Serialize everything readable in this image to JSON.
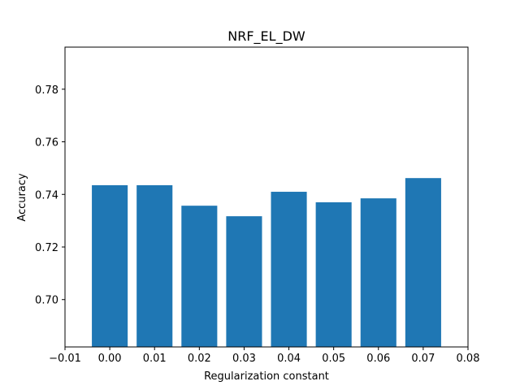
{
  "chart_data": {
    "type": "bar",
    "title": "NRF_EL_DW",
    "xlabel": "Regularization constant",
    "ylabel": "Accuracy",
    "x": [
      0.0,
      0.01,
      0.02,
      0.03,
      0.04,
      0.05,
      0.06,
      0.07
    ],
    "values": [
      0.7435,
      0.7435,
      0.7357,
      0.7317,
      0.741,
      0.737,
      0.7385,
      0.7462
    ],
    "bar_width": 0.008,
    "xlim": [
      -0.01,
      0.08
    ],
    "ylim": [
      0.682,
      0.796
    ],
    "xticks": [
      -0.01,
      0.0,
      0.01,
      0.02,
      0.03,
      0.04,
      0.05,
      0.06,
      0.07,
      0.08
    ],
    "xtick_labels": [
      "−0.01",
      "0.00",
      "0.01",
      "0.02",
      "0.03",
      "0.04",
      "0.05",
      "0.06",
      "0.07",
      "0.08"
    ],
    "yticks": [
      0.7,
      0.72,
      0.74,
      0.76,
      0.78
    ],
    "ytick_labels": [
      "0.70",
      "0.72",
      "0.74",
      "0.76",
      "0.78"
    ],
    "bar_color": "#1f77b4",
    "grid": false,
    "legend": "none"
  }
}
